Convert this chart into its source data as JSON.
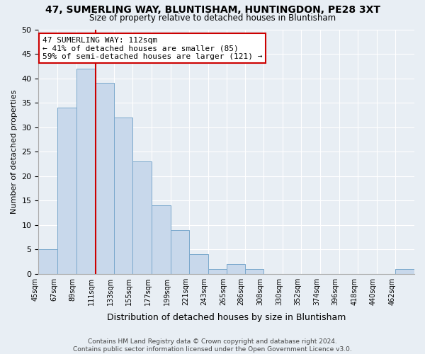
{
  "title": "47, SUMERLING WAY, BLUNTISHAM, HUNTINGDON, PE28 3XT",
  "subtitle": "Size of property relative to detached houses in Bluntisham",
  "xlabel": "Distribution of detached houses by size in Bluntisham",
  "ylabel": "Number of detached properties",
  "bin_edges": [
    45,
    67,
    89,
    111,
    133,
    155,
    177,
    199,
    221,
    243,
    265,
    286,
    308,
    330,
    352,
    374,
    396,
    418,
    440,
    462,
    484
  ],
  "bin_counts": [
    5,
    34,
    42,
    39,
    32,
    23,
    14,
    9,
    4,
    1,
    2,
    1,
    0,
    0,
    0,
    0,
    0,
    0,
    0,
    1
  ],
  "bar_color": "#c8d8eb",
  "bar_edge_color": "#7aa8cc",
  "property_size": 112,
  "vline_color": "#cc0000",
  "annotation_line1": "47 SUMERLING WAY: 112sqm",
  "annotation_line2": "← 41% of detached houses are smaller (85)",
  "annotation_line3": "59% of semi-detached houses are larger (121) →",
  "annotation_box_color": "white",
  "annotation_box_edge_color": "#cc0000",
  "ylim": [
    0,
    50
  ],
  "yticks": [
    0,
    5,
    10,
    15,
    20,
    25,
    30,
    35,
    40,
    45,
    50
  ],
  "footer_text": "Contains HM Land Registry data © Crown copyright and database right 2024.\nContains public sector information licensed under the Open Government Licence v3.0.",
  "background_color": "#e8eef4",
  "grid_color": "#ffffff",
  "title_fontsize": 10,
  "subtitle_fontsize": 8.5,
  "ylabel_fontsize": 8,
  "xlabel_fontsize": 9,
  "ytick_fontsize": 8,
  "xtick_fontsize": 7,
  "annotation_fontsize": 8,
  "footer_fontsize": 6.5
}
